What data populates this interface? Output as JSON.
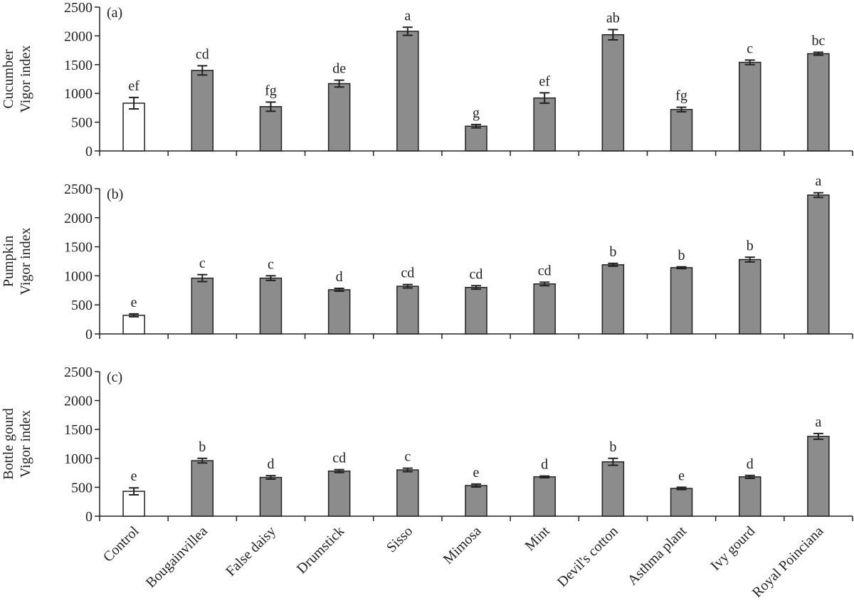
{
  "chart_data": [
    {
      "type": "bar",
      "panel_label": "(a)",
      "ylabel": [
        "Cucumber",
        "Vigor index"
      ],
      "values": [
        830,
        1400,
        770,
        1170,
        2080,
        430,
        920,
        2020,
        720,
        1540,
        1690
      ],
      "errors": [
        100,
        80,
        80,
        60,
        70,
        30,
        90,
        90,
        40,
        40,
        25
      ],
      "annotations": [
        "ef",
        "cd",
        "fg",
        "de",
        "a",
        "g",
        "ef",
        "ab",
        "fg",
        "c",
        "bc"
      ],
      "colors": [
        "#ffffff",
        "#8c8c8c",
        "#8c8c8c",
        "#8c8c8c",
        "#8c8c8c",
        "#8c8c8c",
        "#8c8c8c",
        "#8c8c8c",
        "#8c8c8c",
        "#8c8c8c",
        "#8c8c8c"
      ],
      "ylim": [
        0,
        2500
      ],
      "yticks": [
        0,
        500,
        1000,
        1500,
        2000,
        2500
      ]
    },
    {
      "type": "bar",
      "panel_label": "(b)",
      "ylabel": [
        "Pumpkin",
        "Vigor index"
      ],
      "values": [
        320,
        960,
        960,
        760,
        820,
        800,
        860,
        1190,
        1140,
        1280,
        2390
      ],
      "errors": [
        25,
        60,
        40,
        25,
        30,
        30,
        30,
        25,
        15,
        40,
        40
      ],
      "annotations": [
        "e",
        "c",
        "c",
        "d",
        "cd",
        "cd",
        "cd",
        "b",
        "b",
        "b",
        "a"
      ],
      "colors": [
        "#ffffff",
        "#8c8c8c",
        "#8c8c8c",
        "#8c8c8c",
        "#8c8c8c",
        "#8c8c8c",
        "#8c8c8c",
        "#8c8c8c",
        "#8c8c8c",
        "#8c8c8c",
        "#8c8c8c"
      ],
      "ylim": [
        0,
        2500
      ],
      "yticks": [
        0,
        500,
        1000,
        1500,
        2000,
        2500
      ]
    },
    {
      "type": "bar",
      "panel_label": "(c)",
      "ylabel": [
        "Bottle gourd",
        "Vigor index"
      ],
      "categories": [
        "Control",
        "Bougainvillea",
        "False daisy",
        "Drumstick",
        "Sisso",
        "Mimosa",
        "Mint",
        "Devil's cotton",
        "Asthma plant",
        "Ivy gourd",
        "Royal Poinciana"
      ],
      "values": [
        430,
        960,
        670,
        780,
        800,
        530,
        680,
        940,
        480,
        680,
        1380
      ],
      "errors": [
        60,
        40,
        30,
        25,
        30,
        25,
        15,
        60,
        20,
        25,
        50
      ],
      "annotations": [
        "e",
        "b",
        "d",
        "cd",
        "c",
        "e",
        "d",
        "b",
        "e",
        "d",
        "a"
      ],
      "colors": [
        "#ffffff",
        "#8c8c8c",
        "#8c8c8c",
        "#8c8c8c",
        "#8c8c8c",
        "#8c8c8c",
        "#8c8c8c",
        "#8c8c8c",
        "#8c8c8c",
        "#8c8c8c",
        "#8c8c8c"
      ],
      "ylim": [
        0,
        2500
      ],
      "yticks": [
        0,
        500,
        1000,
        1500,
        2000,
        2500
      ]
    }
  ]
}
